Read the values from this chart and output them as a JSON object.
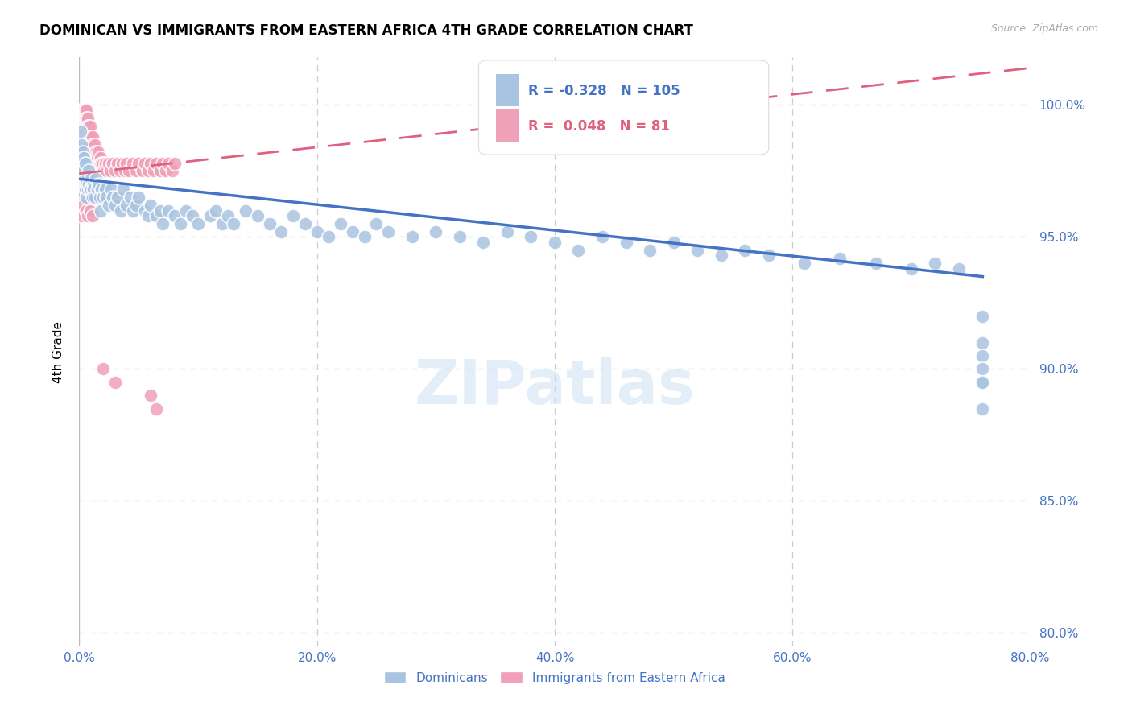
{
  "title": "DOMINICAN VS IMMIGRANTS FROM EASTERN AFRICA 4TH GRADE CORRELATION CHART",
  "source": "Source: ZipAtlas.com",
  "ylabel": "4th Grade",
  "ytick_values": [
    1.0,
    0.95,
    0.9,
    0.85,
    0.8
  ],
  "xrange": [
    0.0,
    0.8
  ],
  "yrange": [
    0.795,
    1.018
  ],
  "legend_blue_R": "-0.328",
  "legend_blue_N": "105",
  "legend_pink_R": "0.048",
  "legend_pink_N": "81",
  "blue_color": "#a8c4e0",
  "blue_line_color": "#4472c4",
  "pink_color": "#f0a0b8",
  "pink_line_color": "#e06080",
  "blue_line_x0": 0.0,
  "blue_line_y0": 0.972,
  "blue_line_x1": 0.76,
  "blue_line_y1": 0.935,
  "pink_line_x0": 0.0,
  "pink_line_y0": 0.974,
  "pink_line_x1": 0.08,
  "pink_line_y1": 0.978,
  "dom_x": [
    0.001,
    0.002,
    0.002,
    0.003,
    0.003,
    0.003,
    0.004,
    0.004,
    0.004,
    0.005,
    0.005,
    0.005,
    0.006,
    0.006,
    0.007,
    0.007,
    0.008,
    0.008,
    0.009,
    0.01,
    0.01,
    0.011,
    0.012,
    0.012,
    0.013,
    0.014,
    0.015,
    0.016,
    0.017,
    0.018,
    0.019,
    0.02,
    0.022,
    0.023,
    0.025,
    0.027,
    0.028,
    0.03,
    0.032,
    0.035,
    0.037,
    0.04,
    0.043,
    0.045,
    0.048,
    0.05,
    0.055,
    0.058,
    0.06,
    0.065,
    0.068,
    0.07,
    0.075,
    0.08,
    0.085,
    0.09,
    0.095,
    0.1,
    0.11,
    0.115,
    0.12,
    0.125,
    0.13,
    0.14,
    0.15,
    0.16,
    0.17,
    0.18,
    0.19,
    0.2,
    0.21,
    0.22,
    0.23,
    0.24,
    0.25,
    0.26,
    0.28,
    0.3,
    0.32,
    0.34,
    0.36,
    0.38,
    0.4,
    0.42,
    0.44,
    0.46,
    0.48,
    0.5,
    0.52,
    0.54,
    0.56,
    0.58,
    0.61,
    0.64,
    0.67,
    0.7,
    0.72,
    0.74,
    0.76,
    0.76,
    0.76,
    0.76,
    0.76,
    0.76,
    0.76
  ],
  "dom_y": [
    0.99,
    0.985,
    0.98,
    0.978,
    0.975,
    0.982,
    0.97,
    0.975,
    0.98,
    0.968,
    0.972,
    0.978,
    0.965,
    0.97,
    0.968,
    0.973,
    0.97,
    0.975,
    0.968,
    0.972,
    0.968,
    0.965,
    0.97,
    0.968,
    0.965,
    0.972,
    0.968,
    0.97,
    0.965,
    0.96,
    0.968,
    0.965,
    0.968,
    0.965,
    0.962,
    0.968,
    0.965,
    0.962,
    0.965,
    0.96,
    0.968,
    0.962,
    0.965,
    0.96,
    0.962,
    0.965,
    0.96,
    0.958,
    0.962,
    0.958,
    0.96,
    0.955,
    0.96,
    0.958,
    0.955,
    0.96,
    0.958,
    0.955,
    0.958,
    0.96,
    0.955,
    0.958,
    0.955,
    0.96,
    0.958,
    0.955,
    0.952,
    0.958,
    0.955,
    0.952,
    0.95,
    0.955,
    0.952,
    0.95,
    0.955,
    0.952,
    0.95,
    0.952,
    0.95,
    0.948,
    0.952,
    0.95,
    0.948,
    0.945,
    0.95,
    0.948,
    0.945,
    0.948,
    0.945,
    0.943,
    0.945,
    0.943,
    0.94,
    0.942,
    0.94,
    0.938,
    0.94,
    0.938,
    0.895,
    0.92,
    0.91,
    0.905,
    0.9,
    0.895,
    0.885
  ],
  "ea_x": [
    0.001,
    0.001,
    0.002,
    0.002,
    0.002,
    0.003,
    0.003,
    0.003,
    0.004,
    0.004,
    0.004,
    0.005,
    0.005,
    0.005,
    0.006,
    0.006,
    0.006,
    0.007,
    0.007,
    0.007,
    0.008,
    0.008,
    0.008,
    0.009,
    0.009,
    0.01,
    0.01,
    0.011,
    0.011,
    0.012,
    0.013,
    0.014,
    0.015,
    0.016,
    0.017,
    0.018,
    0.019,
    0.02,
    0.021,
    0.022,
    0.023,
    0.025,
    0.026,
    0.028,
    0.03,
    0.032,
    0.034,
    0.036,
    0.038,
    0.04,
    0.042,
    0.045,
    0.048,
    0.05,
    0.053,
    0.055,
    0.058,
    0.06,
    0.063,
    0.065,
    0.068,
    0.07,
    0.073,
    0.075,
    0.078,
    0.08,
    0.06,
    0.065,
    0.03,
    0.02,
    0.015,
    0.01,
    0.008,
    0.005,
    0.003,
    0.002,
    0.004,
    0.006,
    0.007,
    0.009,
    0.011
  ],
  "ea_y": [
    0.998,
    0.995,
    0.998,
    0.995,
    0.992,
    0.998,
    0.995,
    0.992,
    0.998,
    0.995,
    0.99,
    0.998,
    0.995,
    0.99,
    0.998,
    0.995,
    0.99,
    0.995,
    0.992,
    0.988,
    0.992,
    0.988,
    0.985,
    0.992,
    0.988,
    0.988,
    0.985,
    0.988,
    0.985,
    0.982,
    0.985,
    0.982,
    0.98,
    0.982,
    0.978,
    0.98,
    0.978,
    0.978,
    0.975,
    0.978,
    0.975,
    0.978,
    0.975,
    0.978,
    0.975,
    0.978,
    0.975,
    0.978,
    0.975,
    0.978,
    0.975,
    0.978,
    0.975,
    0.978,
    0.975,
    0.978,
    0.975,
    0.978,
    0.975,
    0.978,
    0.975,
    0.978,
    0.975,
    0.978,
    0.975,
    0.978,
    0.89,
    0.885,
    0.895,
    0.9,
    0.965,
    0.97,
    0.965,
    0.962,
    0.96,
    0.958,
    0.962,
    0.96,
    0.958,
    0.96,
    0.958
  ]
}
